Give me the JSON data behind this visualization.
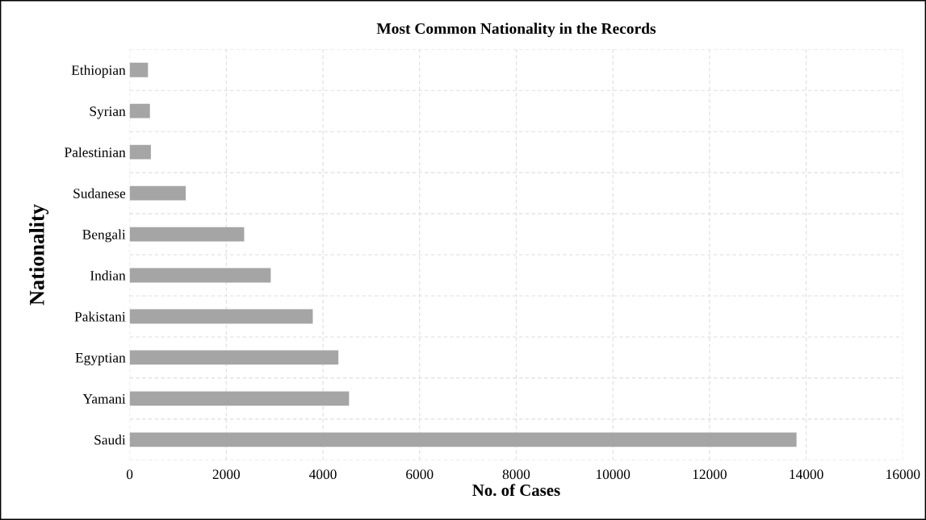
{
  "chart_data": {
    "type": "bar",
    "orientation": "horizontal",
    "title": "Most Common Nationality in the Records",
    "xlabel": "No. of Cases",
    "ylabel": "Nationality",
    "categories": [
      "Ethiopian",
      "Syrian",
      "Palestinian",
      "Sudanese",
      "Bengali",
      "Indian",
      "Pakistani",
      "Egyptian",
      "Yamani",
      "Saudi"
    ],
    "values": [
      380,
      420,
      440,
      1160,
      2370,
      2920,
      3790,
      4320,
      4540,
      13800
    ],
    "color": "#a5a5a5",
    "xlim": [
      0,
      16000
    ],
    "xticks": [
      0,
      2000,
      4000,
      6000,
      8000,
      10000,
      12000,
      14000,
      16000
    ],
    "grid": true
  }
}
